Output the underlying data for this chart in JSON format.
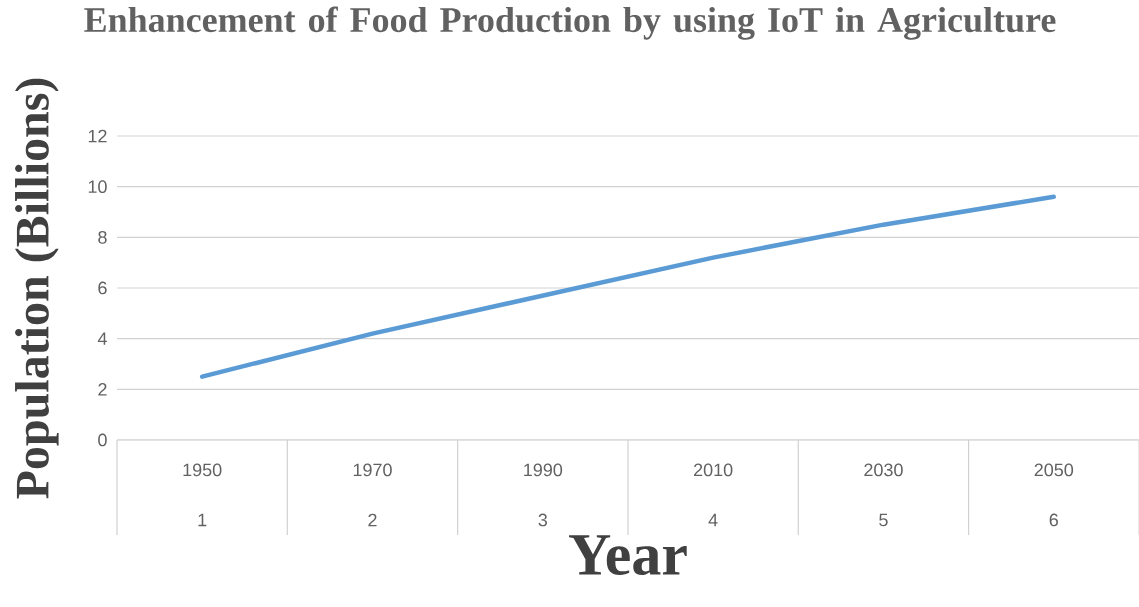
{
  "chart_data": {
    "type": "line",
    "title": "Enhancement of Food Production by using IoT in Agriculture",
    "xlabel": "Year",
    "ylabel": "Population (Billions)",
    "categories": [
      "1950",
      "1970",
      "1990",
      "2010",
      "2030",
      "2050"
    ],
    "values": [
      2.5,
      4.2,
      5.7,
      7.2,
      8.5,
      9.6
    ],
    "color": "#5b9bd5",
    "ylim": [
      0,
      12
    ],
    "yticks": [
      0,
      2,
      4,
      6,
      8,
      10,
      12
    ],
    "grid": "y",
    "marker": "none",
    "line_style": "solid",
    "annotations": [
      "1",
      "2",
      "3",
      "4",
      "5",
      "6"
    ]
  }
}
